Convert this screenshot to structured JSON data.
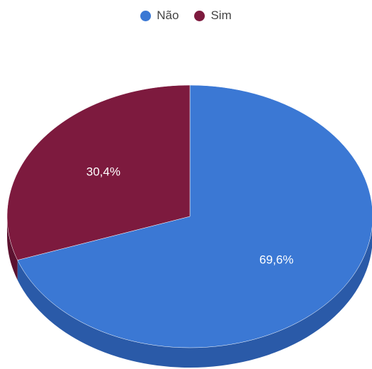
{
  "chart_data": {
    "type": "pie",
    "style": "3d",
    "slices": [
      {
        "label": "Não",
        "value": 69.6,
        "value_label": "69,6%",
        "color": "#3b78d4",
        "side_color": "#2a5aa8"
      },
      {
        "label": "Sim",
        "value": 30.4,
        "value_label": "30,4%",
        "color": "#7d1a3e",
        "side_color": "#5c1230"
      }
    ],
    "legend_position": "top"
  }
}
